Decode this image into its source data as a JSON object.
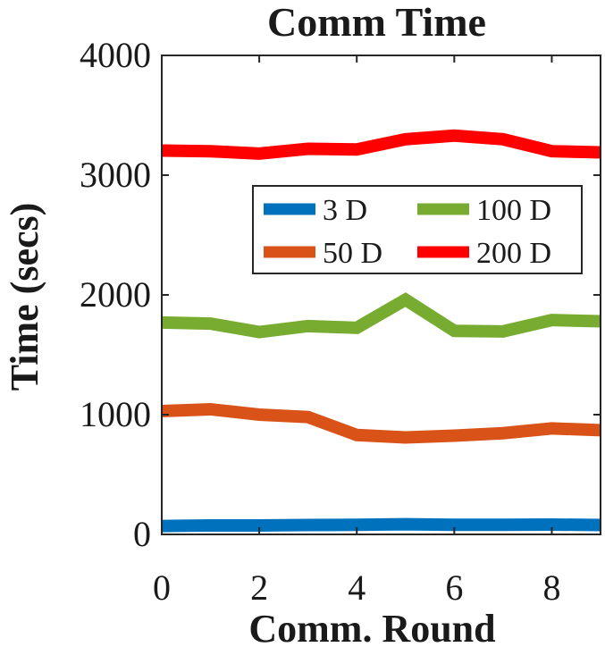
{
  "chart_data": {
    "type": "line",
    "title": "Comm Time",
    "xlabel": "Comm. Round",
    "ylabel": "Time (secs)",
    "xlim": [
      0,
      9
    ],
    "ylim": [
      0,
      4000
    ],
    "x": [
      0,
      1,
      2,
      3,
      4,
      5,
      6,
      7,
      8,
      9
    ],
    "xticks": [
      0,
      2,
      4,
      6,
      8
    ],
    "yticks": [
      0,
      1000,
      2000,
      3000,
      4000
    ],
    "grid": false,
    "legend_position": "upper-right, inside plot",
    "series": [
      {
        "name": "3 D",
        "color": "#0072BD",
        "values": [
          70,
          75,
          75,
          78,
          80,
          85,
          80,
          80,
          82,
          78
        ]
      },
      {
        "name": "50 D",
        "color": "#D95319",
        "values": [
          1030,
          1045,
          1000,
          980,
          830,
          810,
          825,
          845,
          885,
          870
        ]
      },
      {
        "name": "100 D",
        "color": "#77AC30",
        "values": [
          1770,
          1760,
          1690,
          1740,
          1725,
          1960,
          1700,
          1695,
          1790,
          1780
        ]
      },
      {
        "name": "200 D",
        "color": "#FF0000",
        "values": [
          3205,
          3200,
          3180,
          3220,
          3215,
          3300,
          3330,
          3300,
          3200,
          3190
        ]
      }
    ]
  }
}
